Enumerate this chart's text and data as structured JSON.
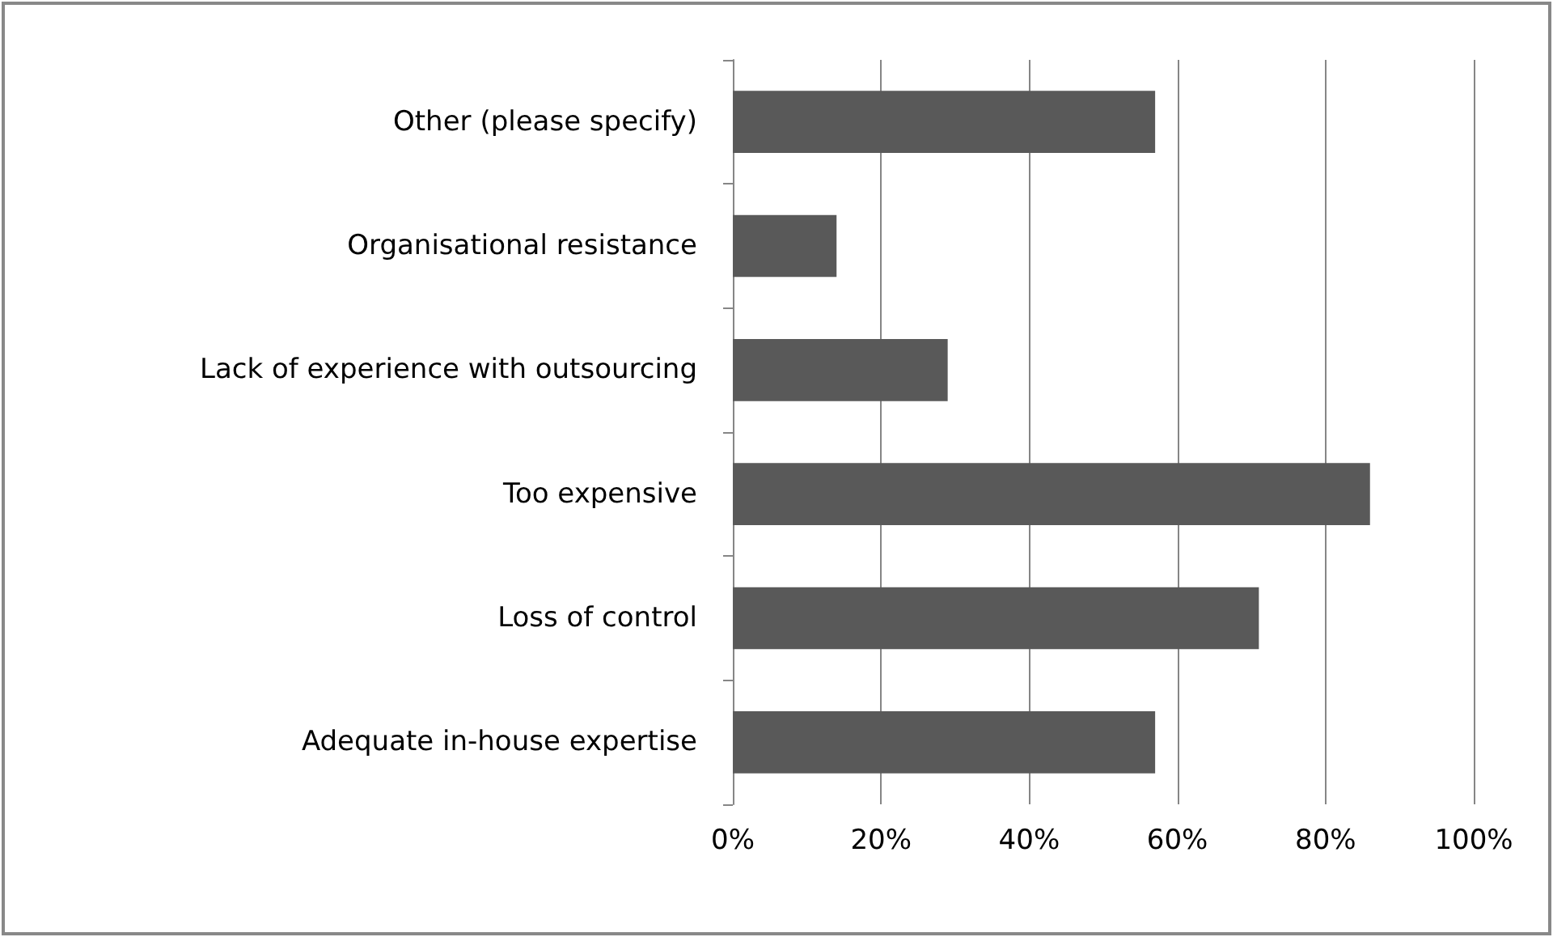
{
  "chart_data": {
    "type": "bar",
    "orientation": "horizontal",
    "categories": [
      "Other (please specify)",
      "Organisational resistance",
      "Lack of experience with outsourcing",
      "Too expensive",
      "Loss of control",
      "Adequate in-house expertise"
    ],
    "values": [
      57,
      14,
      29,
      86,
      71,
      57
    ],
    "color": "#595959",
    "xlim": [
      0,
      100
    ],
    "xticks": [
      {
        "value": 0,
        "label": "0%"
      },
      {
        "value": 20,
        "label": "20%"
      },
      {
        "value": 40,
        "label": "40%"
      },
      {
        "value": 60,
        "label": "60%"
      },
      {
        "value": 80,
        "label": "80%"
      },
      {
        "value": 100,
        "label": "100%"
      }
    ],
    "grid": "x"
  }
}
